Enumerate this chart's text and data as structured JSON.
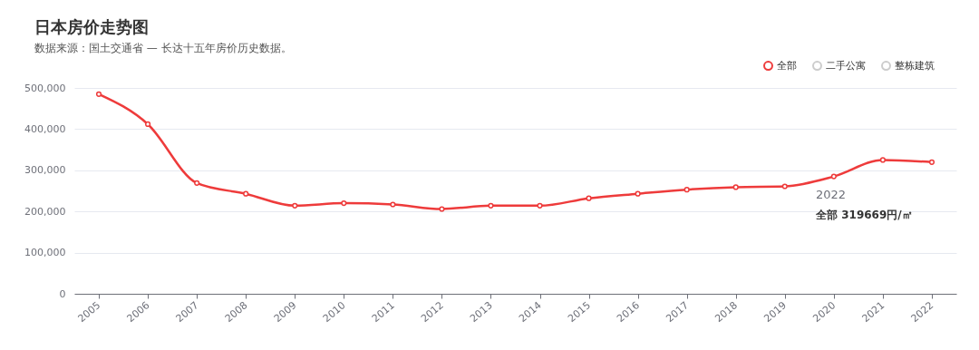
{
  "chart_data": {
    "type": "line",
    "title": "日本房价走势图",
    "subtitle": "数据来源：国土交通省 — 长达十五年房价历史数据。",
    "categories": [
      "2005",
      "2006",
      "2007",
      "2008",
      "2009",
      "2010",
      "2011",
      "2012",
      "2013",
      "2014",
      "2015",
      "2016",
      "2017",
      "2018",
      "2019",
      "2020",
      "2021",
      "2022"
    ],
    "series": [
      {
        "name": "全部",
        "color": "#ee3b3b",
        "values": [
          485000,
          412000,
          269000,
          243000,
          214000,
          220000,
          217000,
          206000,
          214000,
          214000,
          232000,
          243000,
          253000,
          259000,
          261000,
          285000,
          325000,
          319669
        ]
      },
      {
        "name": "二手公寓",
        "color": "#cccccc",
        "values": [
          null,
          null,
          null,
          null,
          null,
          null,
          null,
          null,
          null,
          null,
          null,
          null,
          null,
          null,
          null,
          null,
          null,
          null
        ]
      },
      {
        "name": "整栋建筑",
        "color": "#cccccc",
        "values": [
          null,
          null,
          null,
          null,
          null,
          null,
          null,
          null,
          null,
          null,
          null,
          null,
          null,
          null,
          null,
          null,
          null,
          null
        ]
      }
    ],
    "ylim": [
      0,
      500000
    ],
    "yticks": [
      0,
      {
        "value": 100000,
        "label": "100,000"
      },
      {
        "value": 200000,
        "label": "200,000"
      },
      {
        "value": 300000,
        "label": "300,000"
      },
      {
        "value": 400000,
        "label": "400,000"
      },
      {
        "value": 500000,
        "label": "500,000"
      }
    ],
    "annotations": [
      "2022",
      "全部 319669円/㎡"
    ],
    "grid": "y",
    "legend": "top right",
    "marker": "circle",
    "line_style": "solid"
  }
}
